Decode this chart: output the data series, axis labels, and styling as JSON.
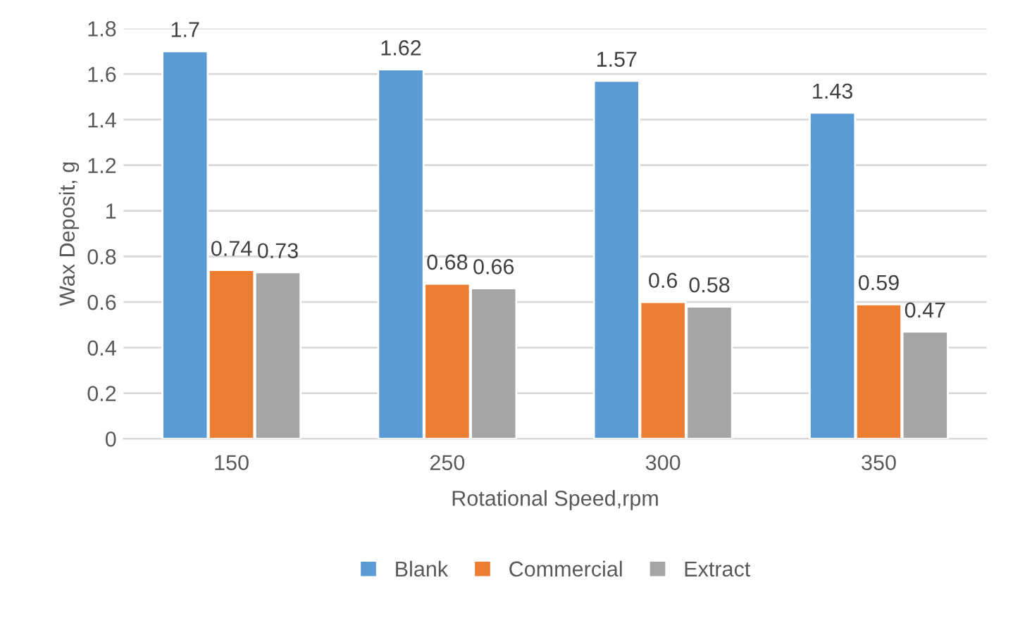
{
  "chart_data": {
    "type": "bar",
    "xlabel": "Rotational Speed,rpm",
    "ylabel": "Wax Deposit, g",
    "categories": [
      "150",
      "250",
      "300",
      "350"
    ],
    "series": [
      {
        "name": "Blank",
        "color": "#5b9bd5",
        "values": [
          1.7,
          1.62,
          1.57,
          1.43
        ]
      },
      {
        "name": "Commercial",
        "color": "#ed7d31",
        "values": [
          0.74,
          0.68,
          0.6,
          0.59
        ]
      },
      {
        "name": "Extract",
        "color": "#a5a5a5",
        "values": [
          0.73,
          0.66,
          0.58,
          0.47
        ]
      }
    ],
    "ylim": [
      0,
      1.8
    ],
    "yticks": [
      0,
      0.2,
      0.4,
      0.6,
      0.8,
      1,
      1.2,
      1.4,
      1.6,
      1.8
    ],
    "grid": "y",
    "legend": "bottom",
    "data_labels": true
  }
}
